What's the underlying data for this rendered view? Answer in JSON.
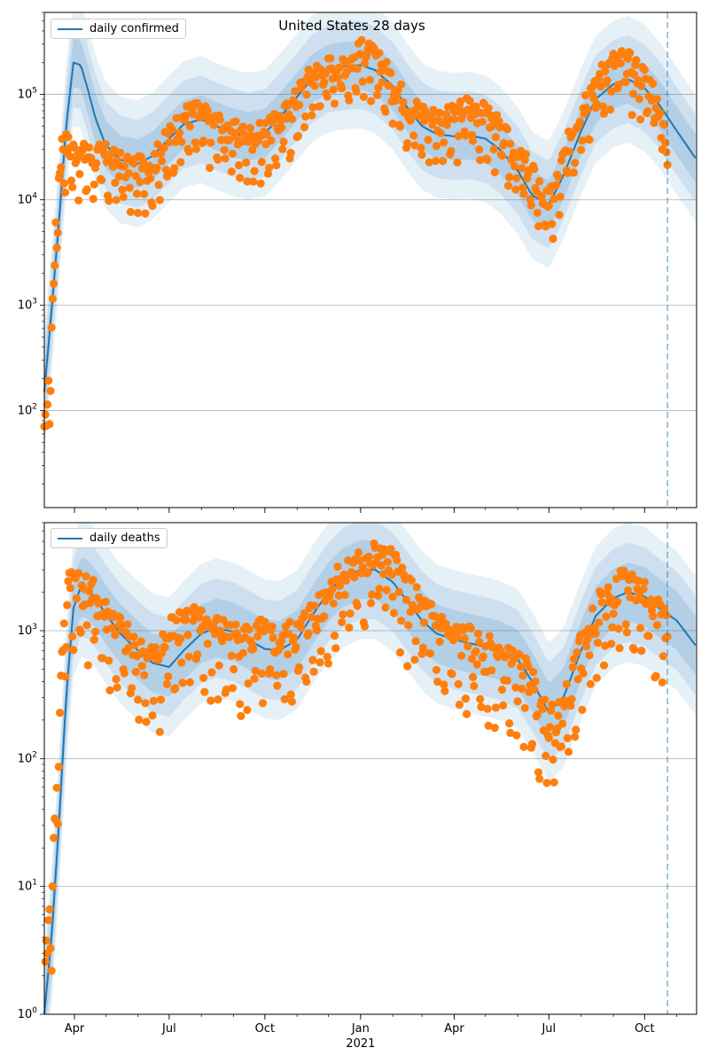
{
  "title": "United States 28 days",
  "colors": {
    "line": "#1f77b4",
    "points": "#ff7f0e",
    "band_inner": "#1f77b4",
    "grid": "#b0b0b0",
    "vline": "#1f77b4"
  },
  "x_axis": {
    "ticks": [
      {
        "date": "2020-04-01",
        "label": "Apr"
      },
      {
        "date": "2020-07-01",
        "label": "Jul"
      },
      {
        "date": "2020-10-01",
        "label": "Oct"
      },
      {
        "date": "2021-01-01",
        "label": "Jan",
        "sublabel": "2021"
      },
      {
        "date": "2021-04-01",
        "label": "Apr"
      },
      {
        "date": "2021-07-01",
        "label": "Jul"
      },
      {
        "date": "2021-10-01",
        "label": "Oct"
      }
    ],
    "range": [
      "2020-03-03",
      "2021-11-20"
    ]
  },
  "chart_data": [
    {
      "type": "line",
      "title": "United States 28 days",
      "legend": "daily confirmed",
      "legend_position": "top-left",
      "y_scale": "log",
      "ylim": [
        12,
        600000
      ],
      "y_ticks": [
        100,
        1000,
        10000,
        100000
      ],
      "y_tick_labels": [
        "10^2",
        "10^3",
        "10^4",
        "10^5"
      ],
      "grid": "horizontal",
      "forecast_start": "2021-10-23",
      "model": {
        "series": "daily confirmed",
        "dates": [
          "2020-03-03",
          "2020-03-10",
          "2020-03-17",
          "2020-03-24",
          "2020-03-31",
          "2020-04-07",
          "2020-04-14",
          "2020-04-21",
          "2020-05-01",
          "2020-05-15",
          "2020-06-01",
          "2020-06-15",
          "2020-07-01",
          "2020-07-15",
          "2020-08-01",
          "2020-08-15",
          "2020-09-01",
          "2020-09-15",
          "2020-10-01",
          "2020-10-15",
          "2020-11-01",
          "2020-11-15",
          "2020-12-01",
          "2020-12-15",
          "2021-01-01",
          "2021-01-15",
          "2021-02-01",
          "2021-02-15",
          "2021-03-01",
          "2021-03-15",
          "2021-04-01",
          "2021-04-15",
          "2021-05-01",
          "2021-05-15",
          "2021-06-01",
          "2021-06-15",
          "2021-07-01",
          "2021-07-15",
          "2021-08-01",
          "2021-08-15",
          "2021-09-01",
          "2021-09-15",
          "2021-10-01",
          "2021-10-15",
          "2021-11-01",
          "2021-11-20"
        ],
        "values": [
          150,
          900,
          6000,
          50000,
          200000,
          190000,
          110000,
          60000,
          33000,
          24000,
          22000,
          26000,
          38000,
          52000,
          58000,
          50000,
          43000,
          40000,
          43000,
          60000,
          95000,
          140000,
          175000,
          185000,
          190000,
          170000,
          120000,
          75000,
          50000,
          42000,
          40000,
          41000,
          38000,
          30000,
          19000,
          11000,
          9000,
          17000,
          45000,
          90000,
          125000,
          140000,
          115000,
          80000,
          45000,
          24000
        ],
        "band": {
          "inner_factor": 1.7,
          "outer_factor": 4.0
        }
      },
      "observed": {
        "series": "daily confirmed (reported)",
        "dates": [
          "2020-03-03",
          "2020-03-08",
          "2020-03-12",
          "2020-03-16",
          "2020-03-20",
          "2020-03-24",
          "2020-03-28",
          "2020-04-01",
          "2020-04-06",
          "2020-04-12",
          "2020-04-20",
          "2020-04-28",
          "2020-05-06",
          "2020-05-16",
          "2020-05-26",
          "2020-06-06",
          "2020-06-16",
          "2020-06-26",
          "2020-07-06",
          "2020-07-16",
          "2020-07-26",
          "2020-08-06",
          "2020-08-16",
          "2020-08-26",
          "2020-09-06",
          "2020-09-16",
          "2020-09-26",
          "2020-10-06",
          "2020-10-16",
          "2020-10-26",
          "2020-11-06",
          "2020-11-16",
          "2020-11-26",
          "2020-12-06",
          "2020-12-16",
          "2020-12-26",
          "2021-01-04",
          "2021-01-10",
          "2021-01-18",
          "2021-01-28",
          "2021-02-08",
          "2021-02-18",
          "2021-03-01",
          "2021-03-12",
          "2021-03-22",
          "2021-04-02",
          "2021-04-12",
          "2021-04-22",
          "2021-05-02",
          "2021-05-12",
          "2021-05-22",
          "2021-06-01",
          "2021-06-10",
          "2021-06-20",
          "2021-06-28",
          "2021-07-06",
          "2021-07-14",
          "2021-07-24",
          "2021-08-03",
          "2021-08-13",
          "2021-08-23",
          "2021-09-02",
          "2021-09-12",
          "2021-09-22",
          "2021-10-02",
          "2021-10-10",
          "2021-10-18",
          "2021-10-23"
        ],
        "values": [
          55,
          190,
          1800,
          12000,
          32000,
          33000,
          30000,
          28000,
          27000,
          26000,
          25000,
          26000,
          24000,
          21000,
          20000,
          19000,
          22000,
          32000,
          45000,
          60000,
          65000,
          58000,
          52000,
          45000,
          40000,
          38000,
          40000,
          45000,
          55000,
          70000,
          110000,
          150000,
          160000,
          185000,
          200000,
          210000,
          260000,
          230000,
          190000,
          150000,
          100000,
          72000,
          65000,
          60000,
          55000,
          60000,
          75000,
          70000,
          60000,
          48000,
          35000,
          24000,
          20000,
          14000,
          9000,
          11000,
          22000,
          45000,
          80000,
          120000,
          160000,
          200000,
          210000,
          170000,
          140000,
          100000,
          60000,
          27000
        ]
      }
    },
    {
      "type": "line",
      "legend": "daily deaths",
      "legend_position": "top-left",
      "y_scale": "log",
      "ylim": [
        1,
        7000
      ],
      "y_ticks": [
        1,
        10,
        100,
        1000
      ],
      "y_tick_labels": [
        "10^0",
        "10^1",
        "10^2",
        "10^3"
      ],
      "grid": "horizontal",
      "forecast_start": "2021-10-23",
      "model": {
        "series": "daily deaths",
        "dates": [
          "2020-03-03",
          "2020-03-10",
          "2020-03-17",
          "2020-03-24",
          "2020-03-31",
          "2020-04-07",
          "2020-04-14",
          "2020-04-21",
          "2020-05-01",
          "2020-05-15",
          "2020-06-01",
          "2020-06-15",
          "2020-07-01",
          "2020-07-15",
          "2020-08-01",
          "2020-08-15",
          "2020-09-01",
          "2020-09-15",
          "2020-10-01",
          "2020-10-15",
          "2020-11-01",
          "2020-11-15",
          "2020-12-01",
          "2020-12-15",
          "2021-01-01",
          "2021-01-15",
          "2021-02-01",
          "2021-02-15",
          "2021-03-01",
          "2021-03-15",
          "2021-04-01",
          "2021-04-15",
          "2021-05-01",
          "2021-05-15",
          "2021-06-01",
          "2021-06-15",
          "2021-07-01",
          "2021-07-15",
          "2021-08-01",
          "2021-08-15",
          "2021-09-01",
          "2021-09-15",
          "2021-10-01",
          "2021-10-15",
          "2021-11-01",
          "2021-11-20"
        ],
        "values": [
          1,
          4,
          30,
          300,
          1500,
          2200,
          2100,
          1800,
          1350,
          950,
          700,
          560,
          520,
          700,
          950,
          1050,
          980,
          850,
          720,
          700,
          850,
          1300,
          2000,
          2600,
          3000,
          3000,
          2400,
          1700,
          1200,
          950,
          850,
          800,
          750,
          700,
          600,
          400,
          230,
          300,
          700,
          1300,
          1800,
          2000,
          1850,
          1500,
          1200,
          750
        ],
        "band": {
          "inner_factor": 1.7,
          "outer_factor": 3.5
        }
      },
      "observed": {
        "series": "daily deaths (reported)",
        "dates": [
          "2020-03-04",
          "2020-03-07",
          "2020-03-10",
          "2020-03-13",
          "2020-03-16",
          "2020-03-19",
          "2020-03-22",
          "2020-03-25",
          "2020-03-28",
          "2020-04-02",
          "2020-04-08",
          "2020-04-15",
          "2020-04-22",
          "2020-04-30",
          "2020-05-09",
          "2020-05-18",
          "2020-05-27",
          "2020-06-06",
          "2020-06-16",
          "2020-06-25",
          "2020-07-06",
          "2020-07-16",
          "2020-07-26",
          "2020-08-06",
          "2020-08-16",
          "2020-08-26",
          "2020-09-06",
          "2020-09-16",
          "2020-09-26",
          "2020-10-06",
          "2020-10-16",
          "2020-10-26",
          "2020-11-06",
          "2020-11-16",
          "2020-11-26",
          "2020-12-06",
          "2020-12-16",
          "2020-12-26",
          "2021-01-05",
          "2021-01-14",
          "2021-01-24",
          "2021-02-03",
          "2021-02-13",
          "2021-02-23",
          "2021-03-05",
          "2021-03-15",
          "2021-03-25",
          "2021-04-05",
          "2021-04-15",
          "2021-04-25",
          "2021-05-05",
          "2021-05-15",
          "2021-05-25",
          "2021-06-04",
          "2021-06-14",
          "2021-06-22",
          "2021-06-30",
          "2021-07-06",
          "2021-07-12",
          "2021-07-20",
          "2021-07-30",
          "2021-08-09",
          "2021-08-19",
          "2021-08-29",
          "2021-09-08",
          "2021-09-18",
          "2021-09-28",
          "2021-10-06",
          "2021-10-14",
          "2021-10-23"
        ],
        "values": [
          2,
          5,
          8,
          27,
          100,
          400,
          1100,
          1800,
          2300,
          2400,
          2200,
          1900,
          1700,
          1300,
          1100,
          900,
          700,
          600,
          550,
          700,
          1100,
          1200,
          1150,
          1000,
          950,
          900,
          850,
          800,
          880,
          850,
          800,
          850,
          1000,
          1300,
          1600,
          2200,
          2700,
          2900,
          3300,
          3600,
          3700,
          3000,
          2200,
          1600,
          1300,
          1100,
          900,
          800,
          780,
          700,
          650,
          600,
          520,
          480,
          400,
          260,
          210,
          180,
          230,
          320,
          620,
          1100,
          1500,
          1800,
          2100,
          2200,
          2000,
          1700,
          1500,
          1000
        ]
      }
    }
  ]
}
